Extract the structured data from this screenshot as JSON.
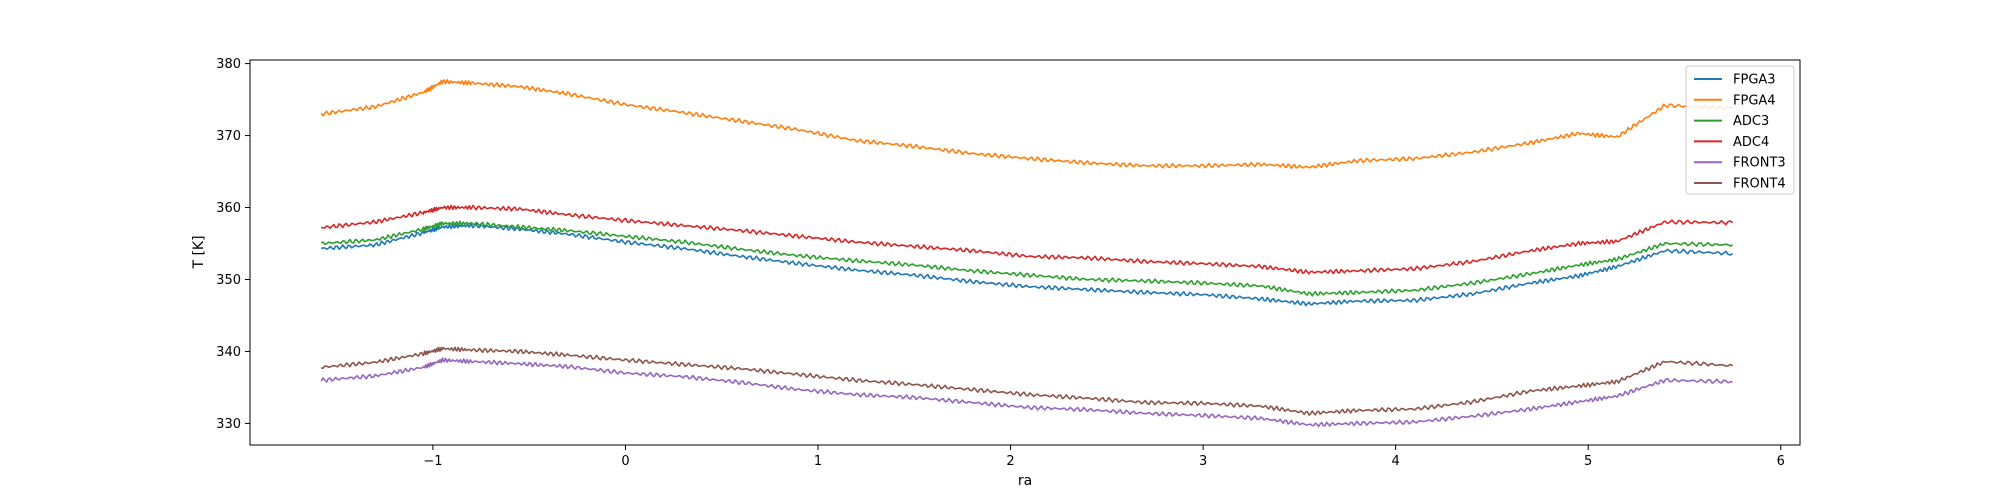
{
  "chart_data": {
    "type": "line",
    "title": "",
    "xlabel": "ra",
    "ylabel": "T [K]",
    "xlim": [
      -1.95,
      6.1
    ],
    "ylim": [
      327,
      380.5
    ],
    "xticks": [
      -1,
      0,
      1,
      2,
      3,
      4,
      5,
      6
    ],
    "yticks": [
      330,
      340,
      350,
      360,
      370,
      380
    ],
    "xtick_labels": [
      "−1",
      "0",
      "1",
      "2",
      "3",
      "4",
      "5",
      "6"
    ],
    "ytick_labels": [
      "330",
      "340",
      "350",
      "360",
      "370",
      "380"
    ],
    "grid": false,
    "legend_position": "top-right",
    "x": [
      -1.58,
      -1.3,
      -1.05,
      -0.95,
      -0.8,
      -0.55,
      -0.3,
      0,
      0.3,
      0.6,
      0.9,
      1.2,
      1.5,
      1.8,
      2.1,
      2.4,
      2.7,
      3.0,
      3.3,
      3.55,
      3.8,
      4.1,
      4.4,
      4.7,
      4.95,
      5.15,
      5.4,
      5.75
    ],
    "series": [
      {
        "name": "FPGA3",
        "color": "#1f77b4",
        "values": [
          354.3,
          354.8,
          356.5,
          357.3,
          357.5,
          357.0,
          356.3,
          355.2,
          354.3,
          353.2,
          352.2,
          351.3,
          350.6,
          349.7,
          349.0,
          348.6,
          348.2,
          347.9,
          347.3,
          346.6,
          347.0,
          347.1,
          348.0,
          349.5,
          350.5,
          351.8,
          354.0,
          353.6
        ]
      },
      {
        "name": "FPGA4",
        "color": "#ff7f0e",
        "values": [
          373.0,
          374.0,
          376.0,
          377.5,
          377.3,
          376.8,
          375.8,
          374.3,
          373.2,
          372.0,
          370.8,
          369.3,
          368.5,
          367.5,
          366.8,
          366.2,
          365.8,
          365.8,
          366.0,
          365.6,
          366.5,
          366.8,
          367.7,
          369.0,
          370.3,
          369.8,
          374.2,
          373.8
        ]
      },
      {
        "name": "ADC3",
        "color": "#2ca02c",
        "values": [
          355.0,
          355.5,
          357.0,
          357.8,
          357.8,
          357.3,
          356.8,
          356.0,
          355.2,
          354.2,
          353.3,
          352.6,
          352.0,
          351.2,
          350.6,
          350.0,
          349.8,
          349.5,
          349.1,
          348.0,
          348.2,
          348.5,
          349.5,
          350.8,
          352.0,
          352.8,
          355.0,
          354.8
        ]
      },
      {
        "name": "ADC4",
        "color": "#d62728",
        "values": [
          357.2,
          358.0,
          359.3,
          360.0,
          360.0,
          359.8,
          359.0,
          358.2,
          357.5,
          356.8,
          356.0,
          355.2,
          354.6,
          354.0,
          353.2,
          353.0,
          352.5,
          352.2,
          351.8,
          351.0,
          351.2,
          351.5,
          352.5,
          354.0,
          355.0,
          355.3,
          358.0,
          357.9
        ]
      },
      {
        "name": "FRONT3",
        "color": "#9467bd",
        "values": [
          336.0,
          336.6,
          337.8,
          338.8,
          338.6,
          338.3,
          337.9,
          337.0,
          336.5,
          335.7,
          334.7,
          334.0,
          333.6,
          332.9,
          332.2,
          331.9,
          331.4,
          331.1,
          330.7,
          329.8,
          330.0,
          330.2,
          331.0,
          332.0,
          333.0,
          333.8,
          336.0,
          335.8
        ]
      },
      {
        "name": "FRONT4",
        "color": "#8c564b",
        "values": [
          337.8,
          338.5,
          339.7,
          340.4,
          340.2,
          340.0,
          339.5,
          338.8,
          338.2,
          337.6,
          336.8,
          336.0,
          335.4,
          334.7,
          334.0,
          333.5,
          332.9,
          332.8,
          332.4,
          331.4,
          331.8,
          332.0,
          333.0,
          334.5,
          335.2,
          335.8,
          338.6,
          338.0
        ]
      }
    ]
  }
}
